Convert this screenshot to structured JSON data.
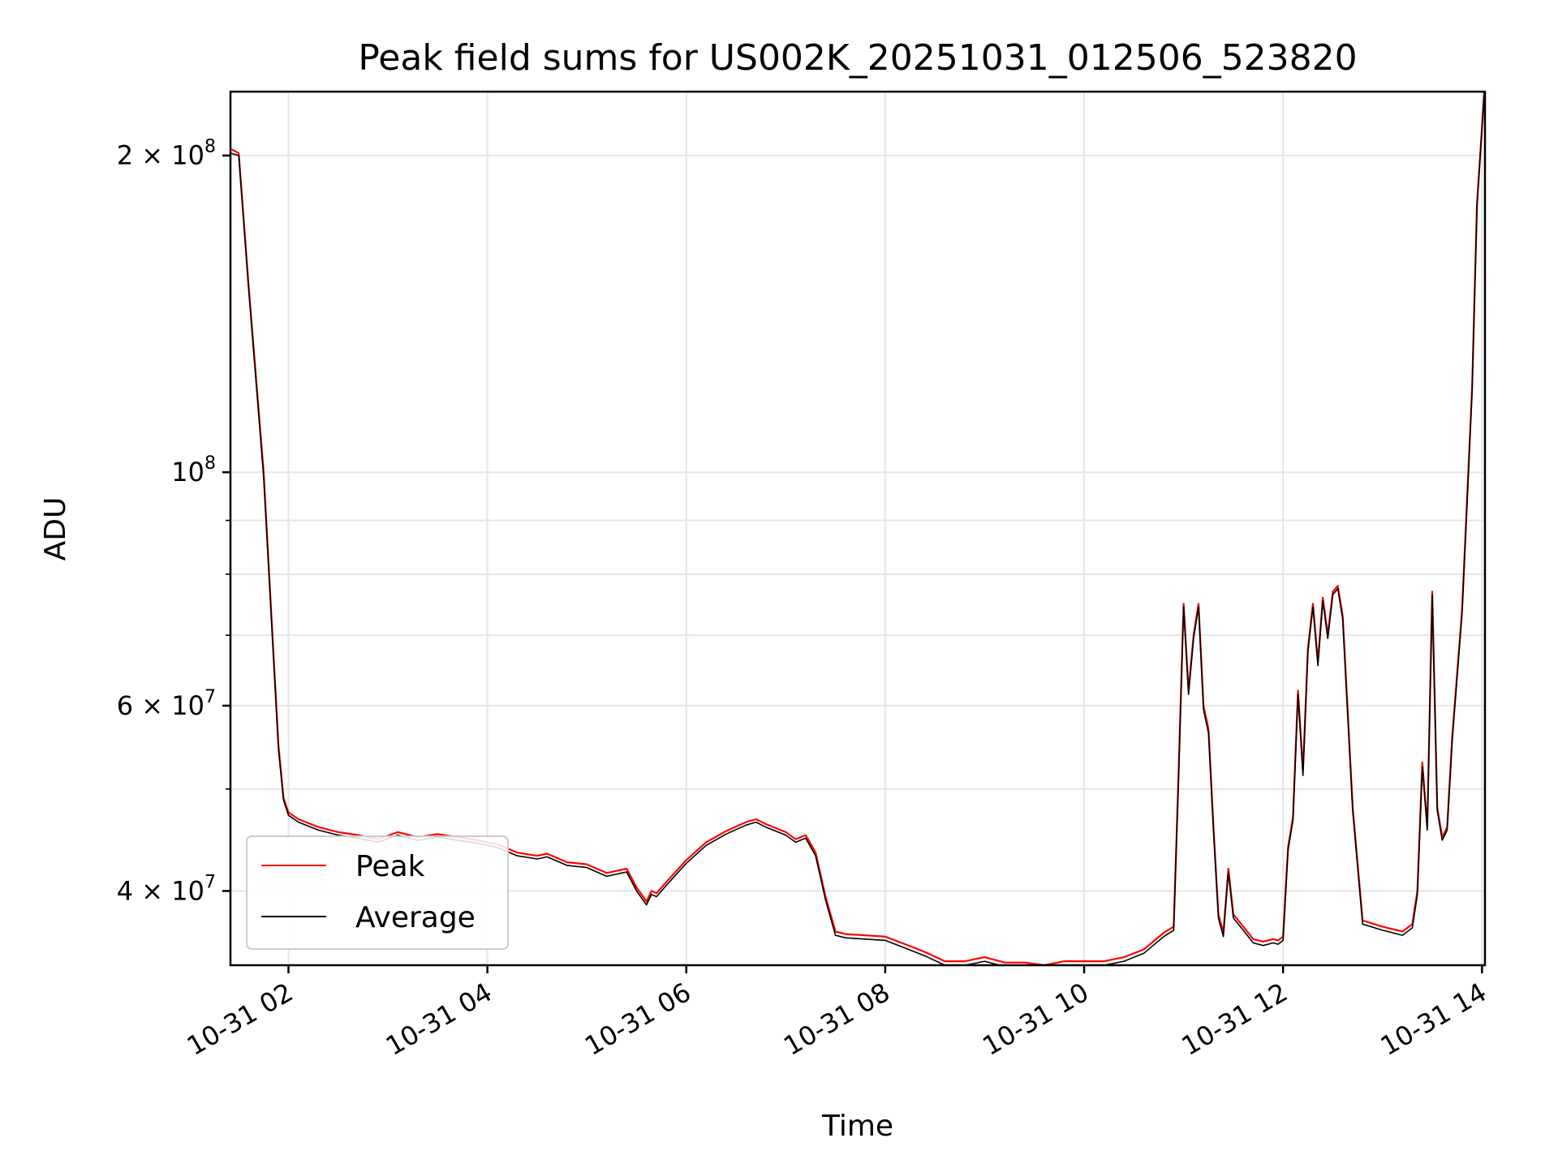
{
  "chart_data": {
    "type": "line",
    "title": "Peak field sums for US002K_20251031_012506_523820",
    "xlabel": "Time",
    "ylabel": "ADU",
    "yscale": "log",
    "grid": true,
    "legend_placement": "lower-left",
    "xlim": [
      1.4167,
      14.03
    ],
    "ylim": [
      34000000.0,
      230000000.0
    ],
    "x_unit": "hours on 10-31",
    "x_ticks": [
      {
        "value": 2,
        "label": "10-31 02"
      },
      {
        "value": 4,
        "label": "10-31 04"
      },
      {
        "value": 6,
        "label": "10-31 06"
      },
      {
        "value": 8,
        "label": "10-31 08"
      },
      {
        "value": 10,
        "label": "10-31 10"
      },
      {
        "value": 12,
        "label": "10-31 12"
      },
      {
        "value": 14,
        "label": "10-31 14"
      }
    ],
    "y_ticks": [
      {
        "value": 200000000,
        "base": "2 × 10",
        "exp": "8"
      },
      {
        "value": 100000000,
        "base": "10",
        "exp": "8"
      },
      {
        "value": 60000000,
        "base": "6 × 10",
        "exp": "7"
      },
      {
        "value": 40000000,
        "base": "4 × 10",
        "exp": "7"
      }
    ],
    "y_minor_ticks": [
      90000000,
      80000000,
      70000000,
      50000000
    ],
    "series": [
      {
        "name": "Peak",
        "color": "#ff0000",
        "x": [
          1.4167,
          1.5,
          1.6,
          1.75,
          1.85,
          1.9,
          1.95,
          2.0,
          2.1,
          2.3,
          2.5,
          2.7,
          2.9,
          3.1,
          3.3,
          3.5,
          3.7,
          3.9,
          4.1,
          4.3,
          4.5,
          4.6,
          4.8,
          5.0,
          5.2,
          5.4,
          5.5,
          5.6,
          5.65,
          5.7,
          5.8,
          6.0,
          6.2,
          6.4,
          6.6,
          6.7,
          6.8,
          7.0,
          7.1,
          7.2,
          7.3,
          7.4,
          7.5,
          7.6,
          7.8,
          8.0,
          8.2,
          8.4,
          8.6,
          8.8,
          9.0,
          9.2,
          9.4,
          9.6,
          9.8,
          10.0,
          10.2,
          10.4,
          10.6,
          10.8,
          10.9,
          10.95,
          11.0,
          11.05,
          11.1,
          11.15,
          11.2,
          11.25,
          11.3,
          11.35,
          11.4,
          11.45,
          11.5,
          11.6,
          11.7,
          11.8,
          11.9,
          11.95,
          12.0,
          12.05,
          12.1,
          12.15,
          12.2,
          12.25,
          12.3,
          12.35,
          12.4,
          12.45,
          12.5,
          12.55,
          12.6,
          12.7,
          12.8,
          13.0,
          13.2,
          13.3,
          13.35,
          13.4,
          13.45,
          13.5,
          13.55,
          13.6,
          13.65,
          13.7,
          13.8,
          13.9,
          13.95,
          14.03
        ],
        "y": [
          203000000,
          201000000,
          150000000,
          100000000,
          67000000,
          55000000,
          49000000,
          47500000,
          46800000,
          46000000,
          45500000,
          45200000,
          44800000,
          45500000,
          45000000,
          45300000,
          45000000,
          44700000,
          44300000,
          43500000,
          43200000,
          43400000,
          42600000,
          42400000,
          41600000,
          42000000,
          40300000,
          39100000,
          40000000,
          39800000,
          40800000,
          42800000,
          44500000,
          45600000,
          46500000,
          46800000,
          46300000,
          45500000,
          44800000,
          45200000,
          43500000,
          39500000,
          36600000,
          36400000,
          36300000,
          36200000,
          35600000,
          35000000,
          34300000,
          34300000,
          34600000,
          34200000,
          34200000,
          34000000,
          34300000,
          34300000,
          34300000,
          34600000,
          35200000,
          36500000,
          37000000,
          52000000,
          75000000,
          62000000,
          70000000,
          75000000,
          60000000,
          57000000,
          46000000,
          38000000,
          36500000,
          42000000,
          38000000,
          37000000,
          36000000,
          35800000,
          36000000,
          35900000,
          36200000,
          44000000,
          47000000,
          62000000,
          52000000,
          68000000,
          75000000,
          66000000,
          76000000,
          70000000,
          77000000,
          78000000,
          73000000,
          48000000,
          37500000,
          37000000,
          36600000,
          37200000,
          40000000,
          53000000,
          46000000,
          77000000,
          48000000,
          45000000,
          46000000,
          56000000,
          74000000,
          120000000,
          180000000,
          235000000
        ]
      },
      {
        "name": "Average",
        "color": "#000000",
        "x": [
          1.4167,
          1.5,
          1.6,
          1.75,
          1.85,
          1.9,
          1.95,
          2.0,
          2.1,
          2.3,
          2.5,
          2.7,
          2.9,
          3.1,
          3.3,
          3.5,
          3.7,
          3.9,
          4.1,
          4.3,
          4.5,
          4.6,
          4.8,
          5.0,
          5.2,
          5.4,
          5.5,
          5.6,
          5.65,
          5.7,
          5.8,
          6.0,
          6.2,
          6.4,
          6.6,
          6.7,
          6.8,
          7.0,
          7.1,
          7.2,
          7.3,
          7.4,
          7.5,
          7.6,
          7.8,
          8.0,
          8.2,
          8.4,
          8.6,
          8.8,
          9.0,
          9.2,
          9.4,
          9.6,
          9.8,
          10.0,
          10.2,
          10.4,
          10.6,
          10.8,
          10.9,
          10.95,
          11.0,
          11.05,
          11.1,
          11.15,
          11.2,
          11.25,
          11.3,
          11.35,
          11.4,
          11.45,
          11.5,
          11.6,
          11.7,
          11.8,
          11.9,
          11.95,
          12.0,
          12.05,
          12.1,
          12.15,
          12.2,
          12.25,
          12.3,
          12.35,
          12.4,
          12.45,
          12.5,
          12.55,
          12.6,
          12.7,
          12.8,
          13.0,
          13.2,
          13.3,
          13.35,
          13.4,
          13.45,
          13.5,
          13.55,
          13.6,
          13.65,
          13.7,
          13.8,
          13.9,
          13.95,
          14.03
        ],
        "y": [
          201000000,
          200000000,
          149000000,
          99000000,
          66500000,
          54500000,
          48800000,
          47200000,
          46500000,
          45700000,
          45200000,
          44900000,
          44500000,
          45200000,
          44700000,
          45000000,
          44700000,
          44400000,
          44000000,
          43200000,
          42900000,
          43100000,
          42300000,
          42100000,
          41300000,
          41700000,
          40000000,
          38800000,
          39700000,
          39500000,
          40500000,
          42500000,
          44200000,
          45300000,
          46200000,
          46500000,
          46000000,
          45200000,
          44500000,
          44900000,
          43200000,
          39200000,
          36300000,
          36100000,
          36000000,
          35900000,
          35300000,
          34700000,
          34000000,
          34000000,
          34300000,
          33900000,
          33900000,
          33700000,
          34000000,
          34000000,
          34000000,
          34300000,
          34900000,
          36200000,
          36700000,
          51500000,
          74500000,
          61500000,
          69500000,
          74500000,
          59500000,
          56500000,
          45700000,
          37700000,
          36200000,
          41700000,
          37700000,
          36700000,
          35700000,
          35500000,
          35700000,
          35600000,
          35900000,
          43700000,
          46700000,
          61500000,
          51500000,
          67500000,
          74500000,
          65500000,
          75500000,
          69500000,
          76500000,
          77500000,
          72500000,
          47700000,
          37200000,
          36700000,
          36300000,
          36900000,
          39700000,
          52500000,
          45700000,
          76500000,
          47700000,
          44700000,
          45700000,
          55500000,
          73500000,
          119000000,
          179000000,
          235000000
        ]
      }
    ]
  }
}
